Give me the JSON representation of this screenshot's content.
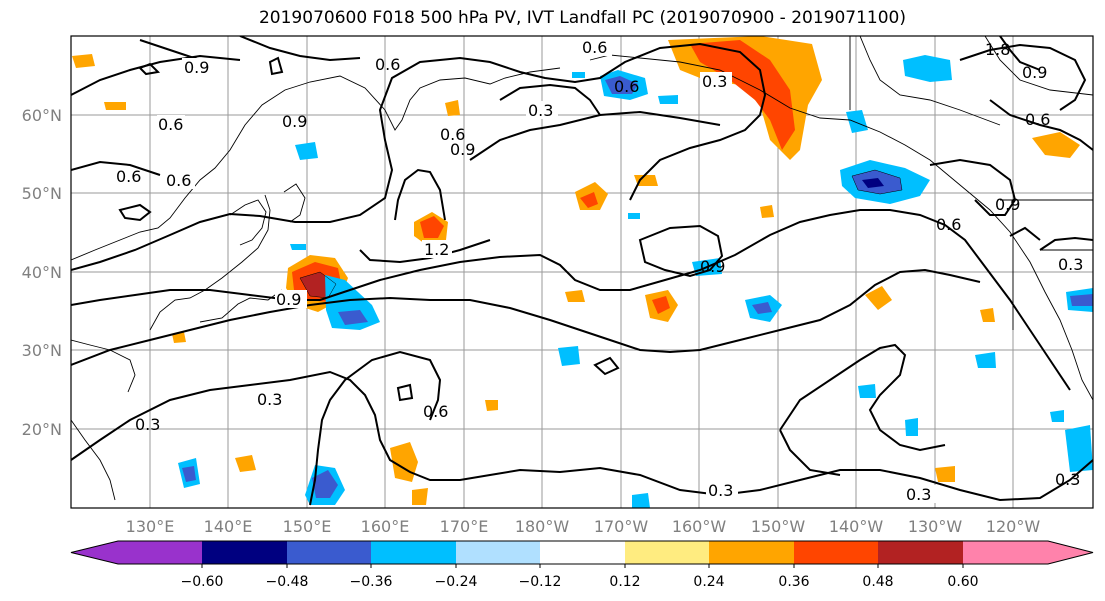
{
  "title": "2019070600 F018 500 hPa PV, IVT Landfall PC (2019070900 - 2019071100)",
  "lat_labels": [
    "60°N",
    "50°N",
    "40°N",
    "30°N",
    "20°N"
  ],
  "lon_labels": [
    "130°E",
    "140°E",
    "150°E",
    "160°E",
    "170°E",
    "180°W",
    "170°W",
    "160°W",
    "150°W",
    "140°W",
    "130°W",
    "120°W"
  ],
  "colorbar": {
    "ticks": [
      "−0.60",
      "−0.48",
      "−0.36",
      "−0.24",
      "−0.12",
      "0.12",
      "0.24",
      "0.36",
      "0.48",
      "0.60"
    ],
    "colors": [
      "#9932cc",
      "#000080",
      "#3a5bcf",
      "#00bfff",
      "#b0e0ff",
      "#ffffff",
      "#ffec80",
      "#ffa500",
      "#ff4500",
      "#b22222",
      "#ff82ab"
    ]
  },
  "contour_labels": [
    "0.9",
    "0.6",
    "0.6",
    "0.6",
    "0.3",
    "0.3",
    "0.6",
    "0.9",
    "0.9",
    "0.6",
    "0.6",
    "0.9",
    "0.6",
    "0.6",
    "1.2",
    "0.9",
    "0.9",
    "0.6",
    "0.3",
    "0.6",
    "0.3",
    "0.3",
    "0.3",
    "0.3",
    "0.9",
    "0.3",
    "1.8"
  ]
}
